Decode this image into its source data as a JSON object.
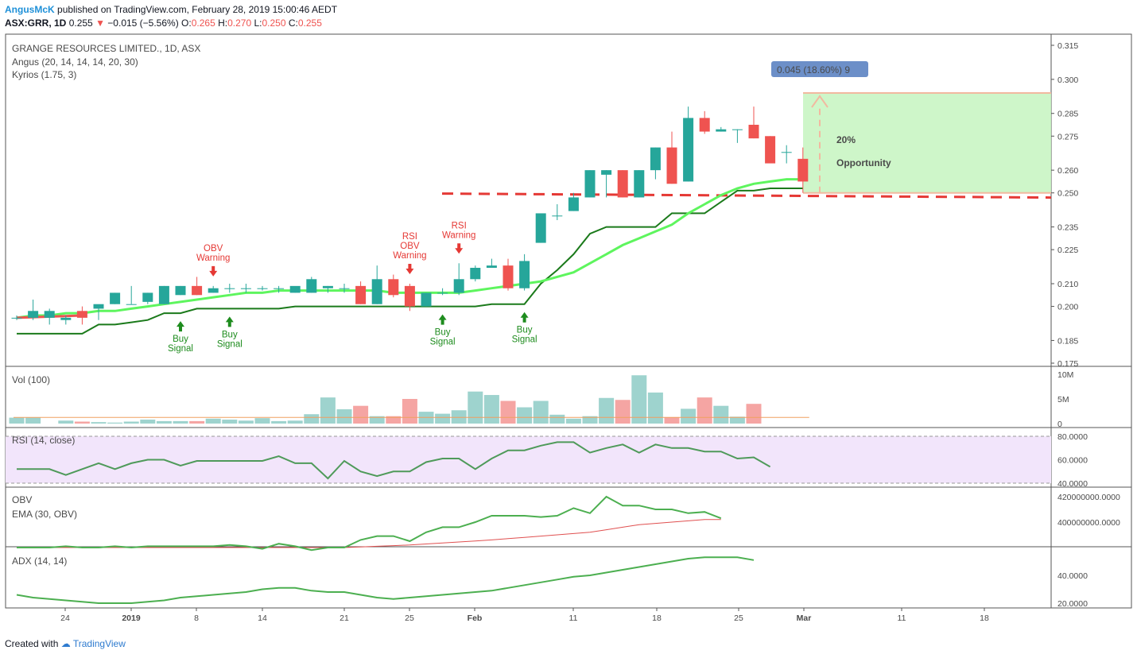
{
  "header": {
    "author": "AngusMcK",
    "published": "published on TradingView.com, February 28, 2019 15:00:46 AEDT",
    "symbol": "ASX:GRR, 1D",
    "last": "0.255",
    "arrow": "▼",
    "change": "−0.015 (−5.56%)",
    "o_label": "O:",
    "o_val": "0.265",
    "h_label": "H:",
    "h_val": "0.270",
    "l_label": "L:",
    "l_val": "0.250",
    "c_label": "C:",
    "c_val": "0.255"
  },
  "footer": {
    "created_with": "Created with",
    "brand": "TradingView"
  },
  "colors": {
    "up": "#26a69a",
    "down": "#ef5350",
    "ma_light": "#5ef55e",
    "ma_dark": "#1b7a1b",
    "signal_green": "#1e8c1e",
    "warn_red": "#e53935",
    "box_fill": "#c6f5c0",
    "box_text": "#3a7d22",
    "rsi_band": "#f2e5fb",
    "rsi_line": "#4f9a5a",
    "obv_line": "#4caf50",
    "obv_ema": "#e05050",
    "adx_line": "#4caf50"
  },
  "chart_data": [
    {
      "type": "candlestick",
      "title": "GRANGE RESOURCES LIMITED., 1D, ASX",
      "indicators": [
        "Angus (20, 14, 14, 14, 20, 30)",
        "Kyrios (1.75, 3)"
      ],
      "x_ticks": [
        "24",
        "2019",
        "8",
        "14",
        "21",
        "25",
        "Feb",
        "11",
        "18",
        "25",
        "Mar",
        "11",
        "18"
      ],
      "y_ticks": [
        "0.315",
        "0.300",
        "0.285",
        "0.275",
        "0.260",
        "0.250",
        "0.235",
        "0.225",
        "0.210",
        "0.200",
        "0.185",
        "0.175"
      ],
      "ylim": [
        0.175,
        0.315
      ],
      "candles": [
        [
          0.195,
          0.196,
          0.194,
          0.195
        ],
        [
          0.195,
          0.203,
          0.194,
          0.198
        ],
        [
          0.195,
          0.199,
          0.192,
          0.198
        ],
        [
          0.194,
          0.196,
          0.192,
          0.195
        ],
        [
          0.198,
          0.2,
          0.192,
          0.195
        ],
        [
          0.199,
          0.2,
          0.194,
          0.201
        ],
        [
          0.201,
          0.206,
          0.201,
          0.206
        ],
        [
          0.201,
          0.209,
          0.201,
          0.201
        ],
        [
          0.202,
          0.206,
          0.201,
          0.206
        ],
        [
          0.201,
          0.209,
          0.201,
          0.209
        ],
        [
          0.205,
          0.209,
          0.205,
          0.209
        ],
        [
          0.209,
          0.213,
          0.205,
          0.205
        ],
        [
          0.206,
          0.209,
          0.206,
          0.208
        ],
        [
          0.208,
          0.21,
          0.206,
          0.208
        ],
        [
          0.208,
          0.21,
          0.206,
          0.208
        ],
        [
          0.208,
          0.209,
          0.207,
          0.208
        ],
        [
          0.208,
          0.209,
          0.206,
          0.208
        ],
        [
          0.206,
          0.208,
          0.206,
          0.209
        ],
        [
          0.206,
          0.213,
          0.206,
          0.212
        ],
        [
          0.208,
          0.209,
          0.206,
          0.209
        ],
        [
          0.208,
          0.21,
          0.206,
          0.208
        ],
        [
          0.209,
          0.211,
          0.201,
          0.201
        ],
        [
          0.201,
          0.218,
          0.201,
          0.212
        ],
        [
          0.212,
          0.214,
          0.204,
          0.205
        ],
        [
          0.209,
          0.21,
          0.198,
          0.2
        ],
        [
          0.2,
          0.206,
          0.2,
          0.206
        ],
        [
          0.206,
          0.208,
          0.205,
          0.206
        ],
        [
          0.206,
          0.219,
          0.205,
          0.212
        ],
        [
          0.212,
          0.218,
          0.211,
          0.217
        ],
        [
          0.217,
          0.221,
          0.217,
          0.218
        ],
        [
          0.218,
          0.221,
          0.207,
          0.208
        ],
        [
          0.208,
          0.223,
          0.207,
          0.22
        ],
        [
          0.228,
          0.24,
          0.228,
          0.241
        ],
        [
          0.24,
          0.245,
          0.238,
          0.24
        ],
        [
          0.242,
          0.25,
          0.242,
          0.248
        ],
        [
          0.248,
          0.26,
          0.248,
          0.26
        ],
        [
          0.258,
          0.26,
          0.248,
          0.26
        ],
        [
          0.26,
          0.26,
          0.248,
          0.248
        ],
        [
          0.248,
          0.26,
          0.248,
          0.26
        ],
        [
          0.26,
          0.27,
          0.256,
          0.27
        ],
        [
          0.27,
          0.277,
          0.254,
          0.254
        ],
        [
          0.255,
          0.288,
          0.255,
          0.283
        ],
        [
          0.283,
          0.286,
          0.276,
          0.277
        ],
        [
          0.277,
          0.279,
          0.277,
          0.278
        ],
        [
          0.278,
          0.278,
          0.272,
          0.278
        ],
        [
          0.28,
          0.288,
          0.274,
          0.274
        ],
        [
          0.275,
          0.275,
          0.264,
          0.263
        ],
        [
          0.268,
          0.271,
          0.263,
          0.268
        ],
        [
          0.265,
          0.27,
          0.25,
          0.255
        ]
      ],
      "ma_light": [
        0.195,
        0.196,
        0.196,
        0.197,
        0.197,
        0.198,
        0.198,
        0.199,
        0.2,
        0.201,
        0.202,
        0.203,
        0.204,
        0.205,
        0.206,
        0.206,
        0.207,
        0.207,
        0.207,
        0.207,
        0.207,
        0.207,
        0.207,
        0.206,
        0.206,
        0.206,
        0.206,
        0.206,
        0.207,
        0.208,
        0.209,
        0.21,
        0.211,
        0.213,
        0.215,
        0.219,
        0.223,
        0.227,
        0.23,
        0.233,
        0.236,
        0.241,
        0.245,
        0.249,
        0.252,
        0.254,
        0.255,
        0.256,
        0.256
      ],
      "ma_dark": [
        0.188,
        0.188,
        0.188,
        0.188,
        0.188,
        0.192,
        0.192,
        0.193,
        0.194,
        0.197,
        0.197,
        0.199,
        0.199,
        0.199,
        0.199,
        0.199,
        0.199,
        0.2,
        0.2,
        0.2,
        0.2,
        0.2,
        0.2,
        0.2,
        0.2,
        0.2,
        0.2,
        0.2,
        0.2,
        0.201,
        0.201,
        0.201,
        0.21,
        0.216,
        0.223,
        0.232,
        0.235,
        0.235,
        0.235,
        0.235,
        0.241,
        0.241,
        0.241,
        0.246,
        0.251,
        0.251,
        0.252,
        0.252,
        0.252
      ],
      "support_level": 0.249,
      "measure_label": "0.045 (18.60%) 9",
      "box_text": [
        "20%",
        "Opportunity"
      ],
      "signals": [
        {
          "bar": 10,
          "kind": "buy",
          "lines": [
            "Buy",
            "Signal"
          ]
        },
        {
          "bar": 13,
          "kind": "buy",
          "lines": [
            "Buy",
            "Signal"
          ]
        },
        {
          "bar": 26,
          "kind": "buy",
          "lines": [
            "Buy",
            "Signal"
          ]
        },
        {
          "bar": 31,
          "kind": "buy",
          "lines": [
            "Buy",
            "Signal"
          ]
        },
        {
          "bar": 12,
          "kind": "warn",
          "lines": [
            "OBV",
            "Warning"
          ]
        },
        {
          "bar": 24,
          "kind": "warn",
          "lines": [
            "RSI",
            "OBV",
            "Warning"
          ]
        },
        {
          "bar": 27,
          "kind": "warn",
          "lines": [
            "RSI",
            "Warning"
          ]
        }
      ]
    },
    {
      "type": "bar",
      "title": "Vol (100)",
      "y_ticks": [
        "10M",
        "5M",
        "0"
      ],
      "ylim": [
        0,
        10
      ],
      "values": [
        1.2,
        1.2,
        0,
        0.6,
        0.4,
        0.3,
        0.2,
        0.4,
        0.8,
        0.5,
        0.5,
        0.5,
        1.0,
        0.8,
        0.6,
        1.1,
        0.5,
        0.6,
        1.9,
        5.3,
        2.9,
        3.6,
        1.5,
        1.5,
        5.0,
        2.4,
        2.0,
        2.7,
        6.5,
        5.8,
        4.6,
        3.3,
        4.6,
        1.8,
        1.0,
        1.5,
        5.2,
        4.8,
        9.8,
        6.3,
        1.3,
        3.0,
        5.3,
        3.6,
        1.4,
        4.0
      ],
      "avg": 1.9
    },
    {
      "type": "line",
      "title": "RSI (14, close)",
      "y_ticks": [
        "80.0000",
        "60.0000",
        "40.0000"
      ],
      "ylim": [
        38,
        82
      ],
      "band": [
        40,
        80
      ],
      "values": [
        52,
        52,
        52,
        47,
        52,
        57,
        52,
        57,
        60,
        60,
        55,
        59,
        59,
        59,
        59,
        59,
        63,
        57,
        57,
        44,
        59,
        50,
        46,
        50,
        50,
        58,
        61,
        61,
        52,
        61,
        68,
        68,
        72,
        75,
        75,
        66,
        70,
        73,
        66,
        73,
        70,
        70,
        67,
        67,
        61,
        62,
        54
      ]
    },
    {
      "type": "line",
      "title": "OBV",
      "series_names": [
        "OBV",
        "EMA (30, OBV)"
      ],
      "y_ticks": [
        "420000000.0000",
        "400000000.0000"
      ],
      "ylim": [
        378000000,
        424000000
      ],
      "obv": [
        380000000,
        380000000,
        380000000,
        381000000,
        380000000,
        380000000,
        381000000,
        380000000,
        381000000,
        381000000,
        381000000,
        381000000,
        381000000,
        382000000,
        381000000,
        379000000,
        383000000,
        381000000,
        378000000,
        380000000,
        380000000,
        386000000,
        389000000,
        389000000,
        385000000,
        392000000,
        396000000,
        396000000,
        400000000,
        405000000,
        405000000,
        405000000,
        404000000,
        405000000,
        411000000,
        407000000,
        420000000,
        413000000,
        413000000,
        410000000,
        410000000,
        407000000,
        408000000,
        403000000
      ],
      "ema": [
        380000000,
        380000000,
        380000000,
        380000000,
        380000000,
        380000000,
        380000000,
        380000000,
        380000000,
        380000000,
        380000000,
        380000000,
        380000000,
        380000000,
        380000000,
        380000000,
        380000000,
        380000000,
        380000000,
        380000000,
        380000000,
        380500000,
        381000000,
        381500000,
        382000000,
        382800000,
        383600000,
        384400000,
        385200000,
        386000000,
        387000000,
        388000000,
        389000000,
        390000000,
        391000000,
        392000000,
        394000000,
        396000000,
        398000000,
        399000000,
        400000000,
        401000000,
        402000000,
        402000000
      ]
    },
    {
      "type": "line",
      "title": "ADX (14, 14)",
      "y_ticks": [
        "40.0000",
        "20.0000"
      ],
      "ylim": [
        18,
        58
      ],
      "values": [
        26,
        24,
        23,
        22,
        21,
        20,
        20,
        20,
        21,
        22,
        24,
        25,
        26,
        27,
        28,
        30,
        31,
        31,
        29,
        28,
        28,
        26,
        24,
        23,
        24,
        25,
        26,
        27,
        28,
        29,
        31,
        33,
        35,
        37,
        39,
        40,
        42,
        44,
        46,
        48,
        50,
        52,
        53,
        53,
        53,
        51
      ]
    }
  ]
}
